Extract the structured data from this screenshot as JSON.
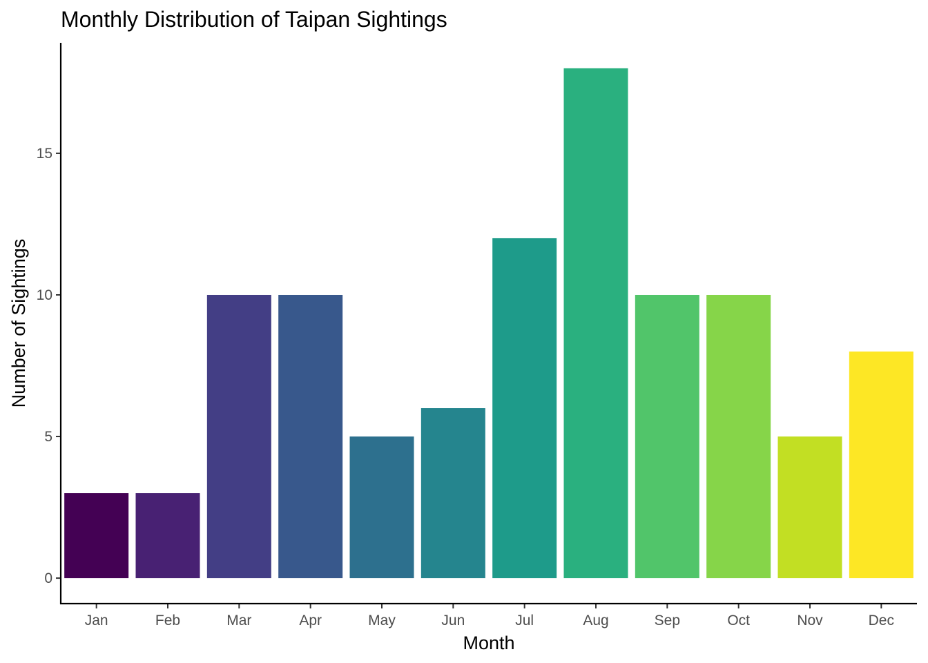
{
  "chart_data": {
    "type": "bar",
    "title": "Monthly Distribution of Taipan Sightings",
    "xlabel": "Month",
    "ylabel": "Number of Sightings",
    "categories": [
      "Jan",
      "Feb",
      "Mar",
      "Apr",
      "May",
      "Jun",
      "Jul",
      "Aug",
      "Sep",
      "Oct",
      "Nov",
      "Dec"
    ],
    "values": [
      3,
      3,
      10,
      10,
      5,
      6,
      12,
      18,
      10,
      10,
      5,
      8
    ],
    "colors": [
      "#440154",
      "#482173",
      "#433e85",
      "#38588c",
      "#2d708e",
      "#25858e",
      "#1e9b8a",
      "#2ab07f",
      "#51c56a",
      "#86d549",
      "#c2df23",
      "#fde725"
    ],
    "yticks": [
      0,
      5,
      10,
      15
    ],
    "ylim": [
      -0.9,
      18.9
    ],
    "grid": false,
    "legend": "none"
  }
}
